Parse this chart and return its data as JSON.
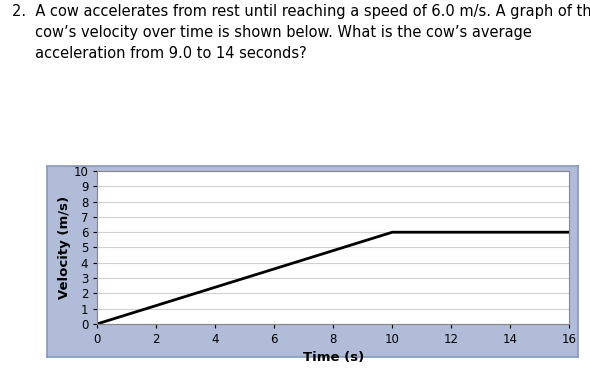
{
  "title_text": "2.  A cow accelerates from rest until reaching a speed of 6.0 m/s. A graph of the\n     cow’s velocity over time is shown below. What is the cow’s average\n     acceleration from 9.0 to 14 seconds?",
  "xlabel": "Time (s)",
  "ylabel": "Velocity (m/s)",
  "xlim": [
    0,
    16
  ],
  "ylim": [
    0,
    10
  ],
  "xticks": [
    0,
    2,
    4,
    6,
    8,
    10,
    12,
    14,
    16
  ],
  "yticks": [
    0,
    1,
    2,
    3,
    4,
    5,
    6,
    7,
    8,
    9,
    10
  ],
  "line_x": [
    0,
    10,
    16
  ],
  "line_y": [
    0,
    6,
    6
  ],
  "line_color": "#000000",
  "line_width": 2.0,
  "plot_bg_color": "#b0bcd8",
  "outer_bg_color": "#b0bcd8",
  "inner_bg_color": "#ffffff",
  "grid_color": "#d0d0d0",
  "grid_linewidth": 0.8,
  "title_fontsize": 10.5,
  "axis_label_fontsize": 9.5,
  "tick_fontsize": 8.5
}
